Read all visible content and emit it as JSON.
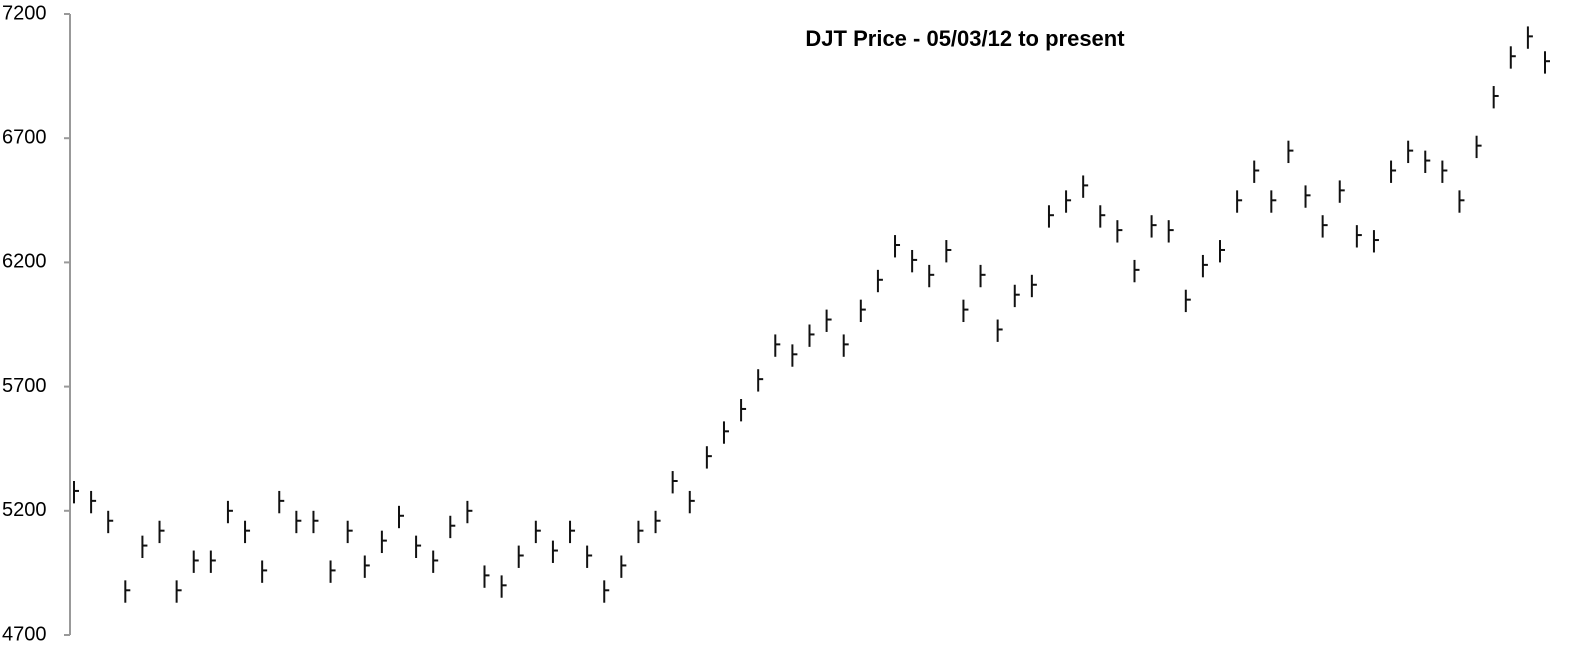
{
  "chart_data": {
    "type": "ohlc",
    "title": "DJT Price - 05/03/12 to present",
    "color": "#111111",
    "ylim": [
      4700,
      7200
    ],
    "yticks": [
      4700,
      5200,
      5700,
      6200,
      6700,
      7200
    ],
    "grid": false,
    "high": [
      5320,
      5280,
      5200,
      4920,
      5100,
      5160,
      4920,
      5040,
      5040,
      5240,
      5160,
      5000,
      5280,
      5200,
      5200,
      5000,
      5160,
      5020,
      5120,
      5220,
      5100,
      5040,
      5180,
      5240,
      4980,
      4940,
      5060,
      5160,
      5080,
      5160,
      5060,
      4920,
      5020,
      5160,
      5200,
      5360,
      5280,
      5460,
      5560,
      5650,
      5770,
      5910,
      5870,
      5950,
      6010,
      5910,
      6050,
      6170,
      6310,
      6250,
      6190,
      6290,
      6050,
      6190,
      5970,
      6110,
      6150,
      6430,
      6490,
      6550,
      6430,
      6370,
      6210,
      6390,
      6370,
      6090,
      6230,
      6290,
      6490,
      6610,
      6490,
      6690,
      6510,
      6390,
      6530,
      6350,
      6330,
      6610,
      6690,
      6650,
      6610,
      6490,
      6710,
      6910,
      7070,
      7150,
      7050
    ],
    "low": [
      5230,
      5190,
      5110,
      4830,
      5010,
      5070,
      4830,
      4950,
      4950,
      5150,
      5070,
      4910,
      5190,
      5110,
      5110,
      4910,
      5070,
      4930,
      5030,
      5130,
      5010,
      4950,
      5090,
      5150,
      4890,
      4850,
      4970,
      5070,
      4990,
      5070,
      4970,
      4830,
      4930,
      5070,
      5110,
      5270,
      5190,
      5370,
      5470,
      5560,
      5680,
      5820,
      5780,
      5860,
      5920,
      5820,
      5960,
      6080,
      6220,
      6160,
      6100,
      6200,
      5960,
      6100,
      5880,
      6020,
      6060,
      6340,
      6400,
      6460,
      6340,
      6280,
      6120,
      6300,
      6280,
      6000,
      6140,
      6200,
      6400,
      6520,
      6400,
      6600,
      6420,
      6300,
      6440,
      6260,
      6240,
      6520,
      6600,
      6560,
      6520,
      6400,
      6620,
      6820,
      6980,
      7060,
      6960
    ],
    "close": [
      5280,
      5240,
      5160,
      4880,
      5060,
      5120,
      4880,
      5000,
      5000,
      5200,
      5120,
      4960,
      5240,
      5160,
      5160,
      4960,
      5120,
      4980,
      5080,
      5180,
      5060,
      5000,
      5140,
      5200,
      4940,
      4900,
      5020,
      5120,
      5040,
      5120,
      5020,
      4880,
      4980,
      5120,
      5160,
      5320,
      5240,
      5420,
      5520,
      5610,
      5730,
      5870,
      5830,
      5910,
      5970,
      5870,
      6010,
      6130,
      6270,
      6210,
      6150,
      6250,
      6010,
      6150,
      5930,
      6070,
      6110,
      6390,
      6450,
      6510,
      6390,
      6330,
      6170,
      6350,
      6330,
      6050,
      6190,
      6250,
      6450,
      6570,
      6450,
      6650,
      6470,
      6350,
      6490,
      6310,
      6290,
      6570,
      6650,
      6610,
      6570,
      6450,
      6670,
      6870,
      7030,
      7110,
      7010
    ]
  }
}
